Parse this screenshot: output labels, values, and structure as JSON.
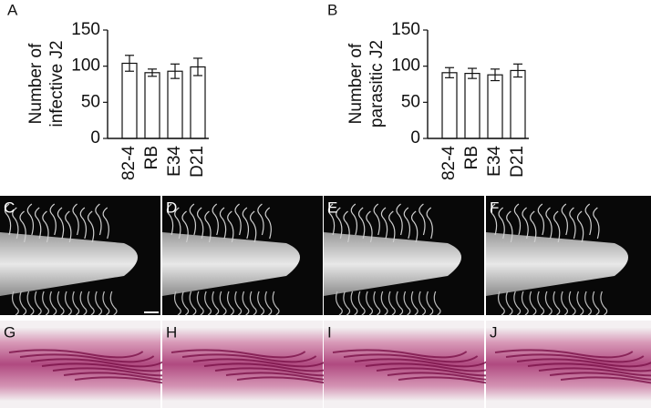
{
  "chart_data": [
    {
      "type": "bar",
      "panel_label": "A",
      "ylabel": [
        "Number of",
        "infective J2"
      ],
      "categories": [
        "82-4",
        "RB",
        "E34",
        "D21"
      ],
      "values": [
        104,
        91,
        93,
        99
      ],
      "errors": [
        11,
        5,
        10,
        12
      ],
      "color": "#ffffff",
      "ylim": [
        0,
        150
      ],
      "yticks": [
        0,
        50,
        100,
        150
      ]
    },
    {
      "type": "bar",
      "panel_label": "B",
      "ylabel": [
        "Number of",
        "parasitic J2"
      ],
      "categories": [
        "82-4",
        "RB",
        "E34",
        "D21"
      ],
      "values": [
        91,
        90,
        88,
        94
      ],
      "errors": [
        7,
        7,
        8,
        9
      ],
      "color": "#ffffff",
      "ylim": [
        0,
        150
      ],
      "yticks": [
        0,
        50,
        100,
        150
      ]
    }
  ],
  "image_panels": [
    {
      "label": "C",
      "kind": "root"
    },
    {
      "label": "D",
      "kind": "root"
    },
    {
      "label": "E",
      "kind": "root"
    },
    {
      "label": "F",
      "kind": "root"
    },
    {
      "label": "G",
      "kind": "stain"
    },
    {
      "label": "H",
      "kind": "stain"
    },
    {
      "label": "I",
      "kind": "stain"
    },
    {
      "label": "J",
      "kind": "stain"
    }
  ]
}
